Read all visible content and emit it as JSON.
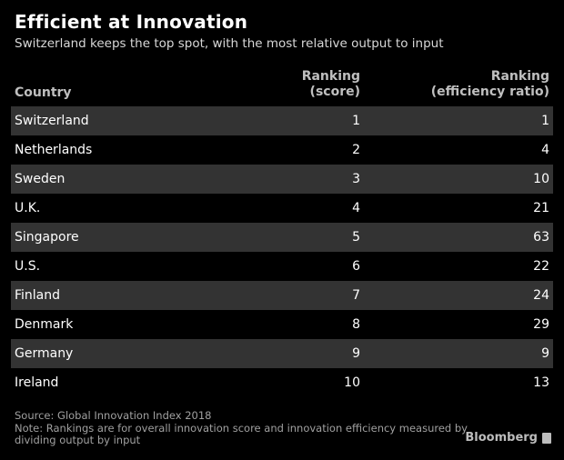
{
  "chart_data": {
    "type": "table",
    "title": "Efficient at Innovation",
    "subtitle": "Switzerland keeps the top spot, with the most relative output to input",
    "columns": {
      "country": "Country",
      "score": [
        "Ranking",
        "(score)"
      ],
      "efficiency": [
        "Ranking",
        "(efficiency ratio)"
      ]
    },
    "rows": [
      {
        "country": "Switzerland",
        "score": 1,
        "efficiency": 1
      },
      {
        "country": "Netherlands",
        "score": 2,
        "efficiency": 4
      },
      {
        "country": "Sweden",
        "score": 3,
        "efficiency": 10
      },
      {
        "country": "U.K.",
        "score": 4,
        "efficiency": 21
      },
      {
        "country": "Singapore",
        "score": 5,
        "efficiency": 63
      },
      {
        "country": "U.S.",
        "score": 6,
        "efficiency": 22
      },
      {
        "country": "Finland",
        "score": 7,
        "efficiency": 24
      },
      {
        "country": "Denmark",
        "score": 8,
        "efficiency": 29
      },
      {
        "country": "Germany",
        "score": 9,
        "efficiency": 9
      },
      {
        "country": "Ireland",
        "score": 10,
        "efficiency": 13
      }
    ],
    "source": "Source: Global Innovation Index 2018",
    "note": "Note: Rankings are for overall innovation score and innovation efficiency measured by dividing output by input"
  },
  "brand": {
    "name": "Bloomberg",
    "icon": "bloomberg-terminal-icon"
  },
  "colors": {
    "background": "#000000",
    "shaded_row": "#333333",
    "text": "#ffffff"
  }
}
